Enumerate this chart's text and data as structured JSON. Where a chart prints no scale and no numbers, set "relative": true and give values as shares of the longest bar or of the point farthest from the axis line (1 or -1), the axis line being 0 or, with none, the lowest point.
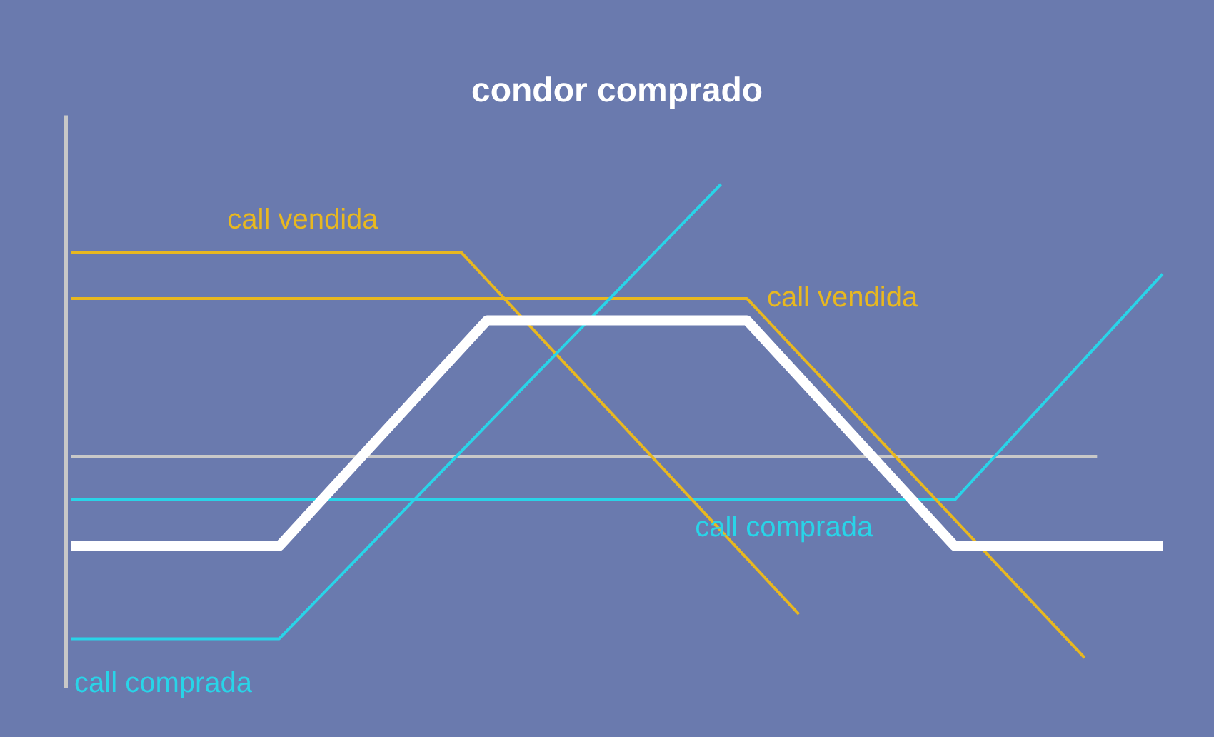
{
  "chart_data": {
    "type": "line",
    "title": "condor comprado",
    "relative": true,
    "legend": false,
    "marker": "none",
    "line_style": "solid",
    "categories": [
      null,
      null,
      null,
      null,
      null,
      null,
      null,
      null,
      null,
      null,
      null,
      null,
      null,
      null,
      null,
      null,
      null,
      null,
      null,
      null,
      null,
      null,
      null,
      null,
      null,
      null,
      null,
      null,
      null,
      null,
      null,
      null,
      null,
      null,
      null,
      null,
      null,
      null,
      null,
      null,
      null,
      null,
      null
    ],
    "series": [
      {
        "color": "#ffffff",
        "values": [
          -0.33,
          null,
          null,
          null,
          null,
          null,
          null,
          null,
          -0.33,
          null,
          null,
          null,
          null,
          null,
          null,
          null,
          0.5,
          null,
          null,
          null,
          null,
          null,
          null,
          null,
          null,
          null,
          0.5,
          null,
          null,
          null,
          null,
          null,
          null,
          null,
          -0.33,
          null,
          null,
          null,
          null,
          null,
          null,
          null,
          -0.33
        ]
      },
      {
        "name": "call comprada",
        "color": "#29d4e8",
        "values": [
          -0.67,
          null,
          null,
          null,
          null,
          null,
          null,
          null,
          -0.67,
          null,
          null,
          null,
          null,
          null,
          null,
          null,
          null,
          null,
          null,
          null,
          null,
          null,
          null,
          null,
          null,
          1,
          null,
          null,
          null,
          null,
          null,
          null,
          null,
          null,
          null,
          null,
          null,
          null,
          null,
          null,
          null,
          null,
          null
        ]
      },
      {
        "name": "call vendida",
        "color": "#e8b820",
        "values": [
          0.75,
          null,
          null,
          null,
          null,
          null,
          null,
          null,
          null,
          null,
          null,
          null,
          null,
          null,
          null,
          0.75,
          null,
          null,
          null,
          null,
          null,
          null,
          null,
          null,
          null,
          null,
          null,
          null,
          -0.58,
          null,
          null,
          null,
          null,
          null,
          null,
          null,
          null,
          null,
          null,
          null,
          null,
          null,
          null
        ]
      },
      {
        "name": "call vendida",
        "color": "#e8b820",
        "values": [
          0.58,
          null,
          null,
          null,
          null,
          null,
          null,
          null,
          null,
          null,
          null,
          null,
          null,
          null,
          null,
          null,
          null,
          null,
          null,
          null,
          null,
          null,
          null,
          null,
          null,
          null,
          0.58,
          null,
          null,
          null,
          null,
          null,
          null,
          null,
          null,
          null,
          null,
          null,
          null,
          -0.74,
          null,
          null,
          null
        ]
      },
      {
        "name": "call comprada",
        "color": "#29d4e8",
        "values": [
          -0.16,
          null,
          null,
          null,
          null,
          null,
          null,
          null,
          null,
          null,
          null,
          null,
          null,
          null,
          null,
          null,
          null,
          null,
          null,
          null,
          null,
          null,
          null,
          null,
          null,
          null,
          null,
          null,
          null,
          null,
          null,
          null,
          null,
          null,
          -0.16,
          null,
          null,
          null,
          null,
          null,
          null,
          null,
          0.67
        ]
      }
    ],
    "ref_lines": [
      {
        "axis": "y",
        "value": 0,
        "color": "#c8c8c8"
      }
    ]
  }
}
